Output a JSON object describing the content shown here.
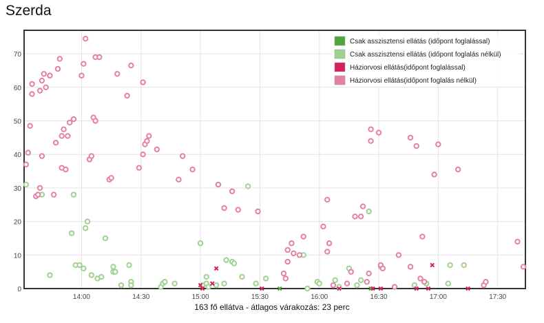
{
  "title": "Szerda",
  "footer": "163 fő ellátva - átlagos várakozás: 23 perc",
  "chart_data": {
    "type": "scatter",
    "title": "Szerda",
    "x_axis": {
      "unit": "time",
      "min": "13:31",
      "max": "17:44",
      "ticks": [
        "14:00",
        "14:30",
        "15:00",
        "15:30",
        "16:00",
        "16:30",
        "17:00",
        "17:30"
      ]
    },
    "y_axis": {
      "min": 0,
      "max": 77,
      "ticks": [
        0,
        10,
        20,
        30,
        40,
        50,
        60,
        70
      ]
    },
    "grid": true,
    "legend_position": "top-right",
    "series": [
      {
        "name": "Csak asszisztensi ellátás (időpont foglalással)",
        "color": "#4fa43a",
        "marker": "x",
        "points": [
          [
            "15:40",
            0
          ],
          [
            "16:26",
            0
          ]
        ]
      },
      {
        "name": "Csak asszisztensi ellátás (időpont foglalás nélkül)",
        "color": "#9fd193",
        "marker": "circle",
        "points": [
          [
            "13:32",
            31
          ],
          [
            "13:40",
            28
          ],
          [
            "13:44",
            4
          ],
          [
            "13:56",
            28
          ],
          [
            "13:57",
            7
          ],
          [
            "13:59",
            7
          ],
          [
            "13:55",
            16.5
          ],
          [
            "14:01",
            6
          ],
          [
            "14:02",
            18
          ],
          [
            "14:03",
            20
          ],
          [
            "14:05",
            4
          ],
          [
            "14:08",
            3
          ],
          [
            "14:10",
            3.5
          ],
          [
            "14:12",
            15
          ],
          [
            "14:16",
            6.5
          ],
          [
            "14:16",
            5
          ],
          [
            "14:17",
            5
          ],
          [
            "14:20",
            1
          ],
          [
            "14:24",
            7
          ],
          [
            "14:25",
            2
          ],
          [
            "14:25",
            1
          ],
          [
            "14:40",
            0.5
          ],
          [
            "14:41",
            1.5
          ],
          [
            "14:42",
            2
          ],
          [
            "14:47",
            1.5
          ],
          [
            "15:00",
            13.5
          ],
          [
            "15:01",
            1
          ],
          [
            "15:03",
            3.5
          ],
          [
            "15:03",
            1.5
          ],
          [
            "15:04",
            0.5
          ],
          [
            "15:08",
            1
          ],
          [
            "15:12",
            1.5
          ],
          [
            "15:13",
            8.5
          ],
          [
            "15:16",
            8
          ],
          [
            "15:17",
            7.5
          ],
          [
            "15:21",
            3.5
          ],
          [
            "15:24",
            30.5
          ],
          [
            "15:28",
            1.5
          ],
          [
            "15:33",
            3
          ],
          [
            "15:52",
            10
          ],
          [
            "15:54",
            0
          ],
          [
            "15:59",
            2
          ],
          [
            "16:00",
            1.5
          ],
          [
            "16:08",
            2.5
          ],
          [
            "16:10",
            0.5
          ],
          [
            "16:15",
            6
          ],
          [
            "16:19",
            1
          ],
          [
            "16:21",
            2.5
          ],
          [
            "16:25",
            23
          ],
          [
            "16:31",
            6.5
          ],
          [
            "16:48",
            1
          ],
          [
            "16:54",
            1.5
          ],
          [
            "17:05",
            1.5
          ],
          [
            "17:06",
            7
          ],
          [
            "17:13",
            7
          ]
        ]
      },
      {
        "name": "Háziorvosi ellátás(időpont foglalással)",
        "color": "#d81e5b",
        "marker": "x",
        "points": [
          [
            "15:00",
            1
          ],
          [
            "15:01",
            0
          ],
          [
            "15:06",
            1.5
          ],
          [
            "15:08",
            6
          ],
          [
            "15:31",
            0
          ],
          [
            "16:10",
            0
          ],
          [
            "16:27",
            0
          ],
          [
            "16:31",
            0
          ],
          [
            "16:49",
            0
          ],
          [
            "16:55",
            0
          ],
          [
            "16:57",
            7
          ],
          [
            "17:15",
            0
          ]
        ]
      },
      {
        "name": "Háziorvosi ellátás(időpont foglalás nélkül)",
        "color": "#e67fa6",
        "marker": "circle",
        "points": [
          [
            "13:32",
            37
          ],
          [
            "13:33",
            40.5
          ],
          [
            "13:34",
            48.5
          ],
          [
            "13:35",
            58
          ],
          [
            "13:35",
            61
          ],
          [
            "13:37",
            27.5
          ],
          [
            "13:38",
            28
          ],
          [
            "13:39",
            30
          ],
          [
            "13:39",
            59
          ],
          [
            "13:40",
            39.5
          ],
          [
            "13:40",
            62
          ],
          [
            "13:41",
            64
          ],
          [
            "13:42",
            60
          ],
          [
            "13:44",
            63.5
          ],
          [
            "13:46",
            28
          ],
          [
            "13:47",
            43.5
          ],
          [
            "13:48",
            65.5
          ],
          [
            "13:49",
            68.5
          ],
          [
            "13:50",
            45.5
          ],
          [
            "13:50",
            36
          ],
          [
            "13:51",
            47.5
          ],
          [
            "13:52",
            35.5
          ],
          [
            "13:53",
            45.5
          ],
          [
            "13:54",
            49.5
          ],
          [
            "13:56",
            50.5
          ],
          [
            "14:00",
            63.5
          ],
          [
            "14:01",
            67
          ],
          [
            "14:02",
            74.5
          ],
          [
            "14:04",
            38.5
          ],
          [
            "14:05",
            39.5
          ],
          [
            "14:06",
            51
          ],
          [
            "14:07",
            50
          ],
          [
            "14:07",
            69
          ],
          [
            "14:09",
            69
          ],
          [
            "14:14",
            32.5
          ],
          [
            "14:15",
            33
          ],
          [
            "14:18",
            64
          ],
          [
            "14:23",
            57.5
          ],
          [
            "14:25",
            66.5
          ],
          [
            "14:29",
            36
          ],
          [
            "14:31",
            40
          ],
          [
            "14:31",
            61.5
          ],
          [
            "14:32",
            43
          ],
          [
            "14:33",
            44
          ],
          [
            "14:34",
            45.5
          ],
          [
            "14:38",
            41.5
          ],
          [
            "14:49",
            32.5
          ],
          [
            "14:51",
            39.5
          ],
          [
            "14:56",
            35.5
          ],
          [
            "15:09",
            31
          ],
          [
            "15:12",
            24
          ],
          [
            "15:16",
            29
          ],
          [
            "15:19",
            23.5
          ],
          [
            "15:29",
            23
          ],
          [
            "15:42",
            4.5
          ],
          [
            "15:43",
            3
          ],
          [
            "15:44",
            8
          ],
          [
            "15:44",
            11.5
          ],
          [
            "15:46",
            13.5
          ],
          [
            "15:47",
            10.5
          ],
          [
            "15:50",
            10
          ],
          [
            "15:52",
            15.5
          ],
          [
            "16:02",
            18.5
          ],
          [
            "16:04",
            11
          ],
          [
            "16:04",
            26.5
          ],
          [
            "16:05",
            13.5
          ],
          [
            "16:07",
            1
          ],
          [
            "16:14",
            1.5
          ],
          [
            "16:16",
            5
          ],
          [
            "16:18",
            21.5
          ],
          [
            "16:21",
            21.5
          ],
          [
            "16:22",
            24.5
          ],
          [
            "16:24",
            2
          ],
          [
            "16:25",
            4.5
          ],
          [
            "16:26",
            44
          ],
          [
            "16:26",
            47.5
          ],
          [
            "16:30",
            46.5
          ],
          [
            "16:31",
            7
          ],
          [
            "16:32",
            6
          ],
          [
            "16:38",
            0.5
          ],
          [
            "16:40",
            10
          ],
          [
            "16:46",
            45
          ],
          [
            "16:46",
            6.5
          ],
          [
            "16:49",
            42.5
          ],
          [
            "16:51",
            3
          ],
          [
            "16:52",
            15.5
          ],
          [
            "16:53",
            2
          ],
          [
            "16:58",
            34
          ],
          [
            "17:00",
            43
          ],
          [
            "17:10",
            35.5
          ],
          [
            "17:23",
            1
          ],
          [
            "17:24",
            2
          ],
          [
            "17:40",
            14
          ],
          [
            "17:43",
            6.5
          ]
        ]
      }
    ]
  }
}
